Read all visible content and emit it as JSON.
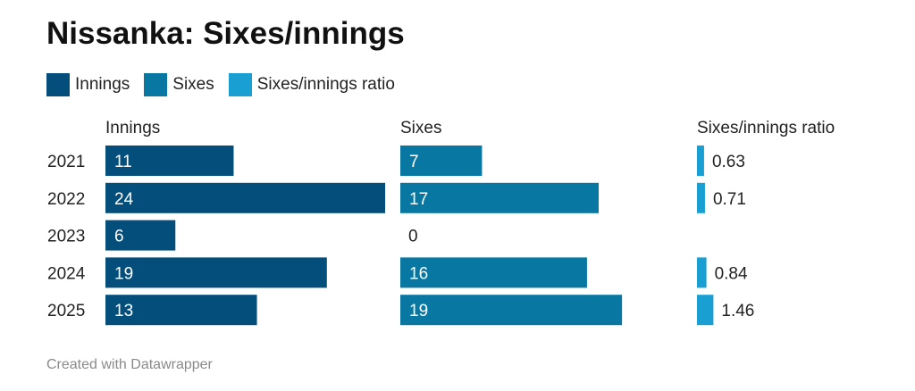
{
  "title": "Nissanka: Sixes/innings",
  "legend": [
    {
      "label": "Innings",
      "color": "#034e7b"
    },
    {
      "label": "Sixes",
      "color": "#0878a3"
    },
    {
      "label": "Sixes/innings ratio",
      "color": "#1a9fd2"
    }
  ],
  "footer": "Created with Datawrapper",
  "chart_data": {
    "type": "bar",
    "categories": [
      "2021",
      "2022",
      "2023",
      "2024",
      "2025"
    ],
    "series": [
      {
        "name": "Innings",
        "values": [
          11,
          24,
          6,
          19,
          13
        ],
        "labels": [
          "11",
          "24",
          "6",
          "19",
          "13"
        ],
        "color": "#034e7b"
      },
      {
        "name": "Sixes",
        "values": [
          7,
          17,
          0,
          16,
          19
        ],
        "labels": [
          "7",
          "17",
          "0",
          "16",
          "19"
        ],
        "color": "#0878a3"
      },
      {
        "name": "Sixes/innings ratio",
        "values": [
          0.63,
          0.71,
          0,
          0.84,
          1.46
        ],
        "labels": [
          "0.63",
          "0.71",
          "",
          "0.84",
          "1.46"
        ],
        "color": "#1a9fd2"
      }
    ]
  }
}
